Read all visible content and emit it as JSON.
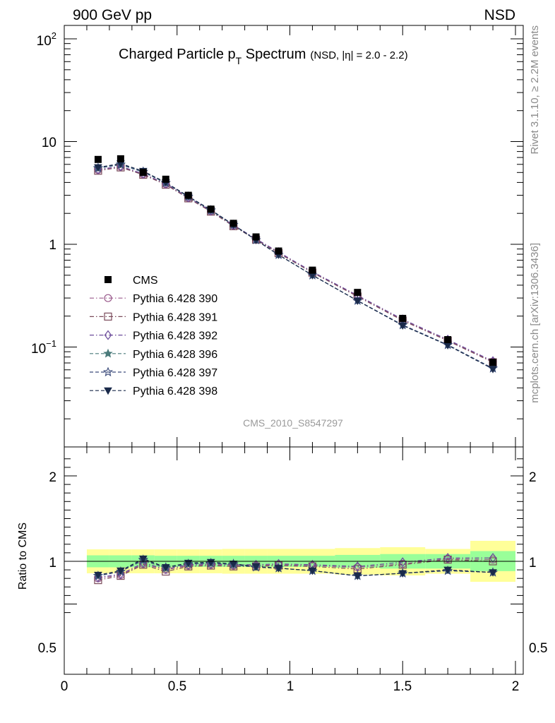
{
  "header": {
    "energy_label": "900 GeV pp",
    "process_label": "NSD"
  },
  "side_labels": {
    "rivet": "Rivet 3.1.10, ≥ 2.2M events",
    "mcplots": "mcplots.cern.ch [arXiv:1306.3436]"
  },
  "chart_data": [
    {
      "type": "scatter",
      "title_main": "Charged Particle p",
      "title_sub": "T",
      "title_tail": " Spectrum",
      "title_small": "(NSD, |η| = 2.0 - 2.2)",
      "watermark": "CMS_2010_S8547297",
      "yscale": "log",
      "xlim": [
        0,
        2
      ],
      "ylim": [
        0.01,
        120
      ],
      "y_tick_labels": [
        "10⁻¹",
        "1",
        "10",
        "10²"
      ],
      "x": [
        0.15,
        0.25,
        0.35,
        0.45,
        0.55,
        0.65,
        0.75,
        0.85,
        0.95,
        1.1,
        1.3,
        1.5,
        1.7,
        1.9
      ],
      "data_series": {
        "name": "CMS",
        "values": [
          6.7,
          6.8,
          5.0,
          4.3,
          3.0,
          2.2,
          1.6,
          1.18,
          0.86,
          0.56,
          0.34,
          0.19,
          0.118,
          0.071
        ]
      },
      "series": [
        {
          "name": "Pythia 6.428 390",
          "color": "#9a5a8c",
          "marker": "circle-open",
          "dash": "dashdot",
          "values": [
            5.3,
            5.7,
            4.8,
            3.85,
            2.83,
            2.1,
            1.52,
            1.12,
            0.83,
            0.535,
            0.315,
            0.183,
            0.116,
            0.072
          ]
        },
        {
          "name": "Pythia 6.428 391",
          "color": "#7a4a5a",
          "marker": "square-open",
          "dash": "dashdot",
          "values": [
            5.2,
            5.6,
            4.75,
            3.8,
            2.8,
            2.08,
            1.5,
            1.11,
            0.82,
            0.53,
            0.31,
            0.181,
            0.115,
            0.071
          ]
        },
        {
          "name": "Pythia 6.428 392",
          "color": "#6a4a9a",
          "marker": "diamond-open",
          "dash": "dashdot",
          "values": [
            5.35,
            5.75,
            4.85,
            3.9,
            2.86,
            2.12,
            1.54,
            1.13,
            0.84,
            0.54,
            0.318,
            0.186,
            0.118,
            0.073
          ]
        },
        {
          "name": "Pythia 6.428 396",
          "color": "#4a7a7a",
          "marker": "star-filled",
          "dash": "dashed",
          "values": [
            5.5,
            5.95,
            5.05,
            3.95,
            2.9,
            2.13,
            1.54,
            1.1,
            0.79,
            0.5,
            0.283,
            0.163,
            0.105,
            0.062
          ]
        },
        {
          "name": "Pythia 6.428 397",
          "color": "#3a4a7a",
          "marker": "star-open",
          "dash": "dashed",
          "values": [
            5.55,
            6.0,
            5.1,
            3.98,
            2.92,
            2.15,
            1.55,
            1.1,
            0.79,
            0.5,
            0.283,
            0.164,
            0.105,
            0.062
          ]
        },
        {
          "name": "Pythia 6.428 398",
          "color": "#1a2a4a",
          "marker": "triangle-down-filled",
          "dash": "dashed",
          "values": [
            5.6,
            6.1,
            5.15,
            4.0,
            2.93,
            2.16,
            1.55,
            1.1,
            0.79,
            0.5,
            0.282,
            0.162,
            0.104,
            0.061
          ]
        }
      ]
    },
    {
      "type": "scatter",
      "ylabel": "Ratio to CMS",
      "xlim": [
        0,
        2
      ],
      "ylim": [
        0.35,
        2.25
      ],
      "x_tick_labels": [
        "0",
        "0.5",
        "1",
        "1.5",
        "2"
      ],
      "y_tick_labels": [
        "0.5",
        "1",
        "2"
      ],
      "bands": {
        "bin_edges": [
          0.1,
          0.2,
          0.3,
          0.4,
          0.5,
          0.6,
          0.7,
          0.8,
          0.9,
          1.0,
          1.2,
          1.4,
          1.6,
          1.8,
          2.0
        ],
        "stat_low": [
          0.93,
          0.93,
          0.93,
          0.935,
          0.935,
          0.935,
          0.935,
          0.935,
          0.935,
          0.935,
          0.925,
          0.915,
          0.915,
          0.885
        ],
        "stat_high": [
          1.07,
          1.07,
          1.07,
          1.065,
          1.065,
          1.065,
          1.065,
          1.065,
          1.065,
          1.065,
          1.075,
          1.085,
          1.085,
          1.12
        ],
        "total_low": [
          0.86,
          0.86,
          0.86,
          0.86,
          0.86,
          0.86,
          0.855,
          0.855,
          0.855,
          0.855,
          0.845,
          0.835,
          0.855,
          0.76
        ],
        "total_high": [
          1.14,
          1.14,
          1.14,
          1.14,
          1.14,
          1.14,
          1.145,
          1.145,
          1.145,
          1.145,
          1.155,
          1.165,
          1.145,
          1.24
        ]
      },
      "series": [
        {
          "name": "Pythia 6.428 390",
          "values": [
            0.8,
            0.84,
            0.97,
            0.9,
            0.95,
            0.96,
            0.95,
            0.95,
            0.96,
            0.95,
            0.93,
            0.97,
            1.03,
            1.02
          ]
        },
        {
          "name": "Pythia 6.428 391",
          "values": [
            0.78,
            0.83,
            0.96,
            0.88,
            0.94,
            0.95,
            0.94,
            0.94,
            0.95,
            0.94,
            0.91,
            0.96,
            1.02,
            1.0
          ]
        },
        {
          "name": "Pythia 6.428 392",
          "values": [
            0.81,
            0.85,
            0.98,
            0.91,
            0.96,
            0.97,
            0.96,
            0.96,
            0.97,
            0.96,
            0.94,
            0.99,
            1.04,
            1.04
          ]
        },
        {
          "name": "Pythia 6.428 396",
          "values": [
            0.83,
            0.88,
            1.01,
            0.92,
            0.97,
            0.98,
            0.96,
            0.93,
            0.92,
            0.89,
            0.83,
            0.86,
            0.89,
            0.87
          ]
        },
        {
          "name": "Pythia 6.428 397",
          "values": [
            0.83,
            0.88,
            1.02,
            0.93,
            0.97,
            0.98,
            0.97,
            0.93,
            0.92,
            0.89,
            0.83,
            0.86,
            0.89,
            0.87
          ]
        },
        {
          "name": "Pythia 6.428 398",
          "values": [
            0.84,
            0.89,
            1.03,
            0.93,
            0.98,
            0.99,
            0.97,
            0.94,
            0.92,
            0.89,
            0.83,
            0.86,
            0.9,
            0.87
          ]
        }
      ]
    }
  ]
}
